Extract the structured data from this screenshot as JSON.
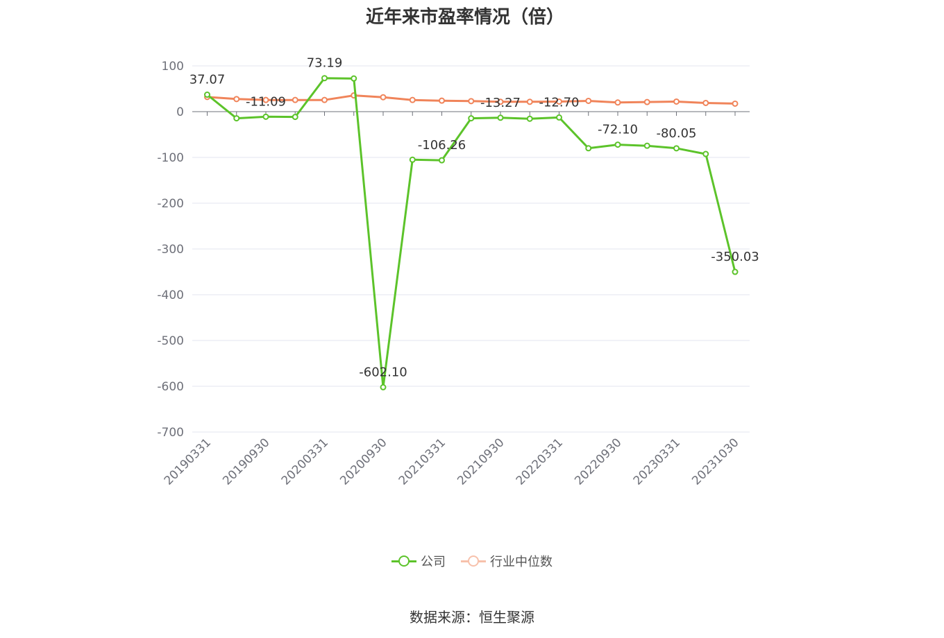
{
  "title": "近年来市盈率情况（倍）",
  "source": "数据来源：恒生聚源",
  "colors": {
    "company": "#5cc32a",
    "industry": "#f0845a",
    "grid": "#e3e6ef",
    "axis": "#6e7079",
    "tick_text": "#6e7079"
  },
  "legend": {
    "company": "公司",
    "industry": "行业中位数"
  },
  "chart_data": {
    "type": "line",
    "title": "近年来市盈率情况（倍）",
    "xlabel": "",
    "ylabel": "",
    "ylim": [
      -700,
      100
    ],
    "yticks": [
      100,
      0,
      -100,
      -200,
      -300,
      -400,
      -500,
      -600,
      -700
    ],
    "x": [
      "20190331",
      "20190630",
      "20190930",
      "20191231",
      "20200331",
      "20200630",
      "20200930",
      "20201231",
      "20210331",
      "20210630",
      "20210930",
      "20211231",
      "20220331",
      "20220630",
      "20220930",
      "20221231",
      "20230331",
      "20230630",
      "20231030"
    ],
    "xtick_labels": [
      "20190331",
      "20190930",
      "20200331",
      "20200930",
      "20210331",
      "20210930",
      "20220331",
      "20220930",
      "20230331",
      "20231030"
    ],
    "series": [
      {
        "name": "公司",
        "values": [
          37.07,
          -14.5,
          -11.09,
          -11.5,
          73.19,
          72.5,
          -602.1,
          -105.0,
          -106.26,
          -14.5,
          -13.27,
          -15.5,
          -12.7,
          -80.0,
          -72.1,
          -74.5,
          -80.05,
          -92.5,
          -350.03
        ]
      },
      {
        "name": "行业中位数",
        "values": [
          32.0,
          27.5,
          25.5,
          25.5,
          25.5,
          35.5,
          31.5,
          25.5,
          24.0,
          23.0,
          21.5,
          21.5,
          22.0,
          23.5,
          20.0,
          21.0,
          22.0,
          19.0,
          17.5
        ]
      }
    ],
    "data_labels": [
      {
        "index": 0,
        "text": "37.07"
      },
      {
        "index": 2,
        "text": "-11.09"
      },
      {
        "index": 4,
        "text": "73.19"
      },
      {
        "index": 6,
        "text": "-602.10"
      },
      {
        "index": 8,
        "text": "-106.26"
      },
      {
        "index": 10,
        "text": "-13.27"
      },
      {
        "index": 12,
        "text": "-12.70"
      },
      {
        "index": 14,
        "text": "-72.10"
      },
      {
        "index": 16,
        "text": "-80.05"
      },
      {
        "index": 18,
        "text": "-350.03"
      }
    ],
    "grid": true,
    "legend_position": "bottom-center"
  }
}
